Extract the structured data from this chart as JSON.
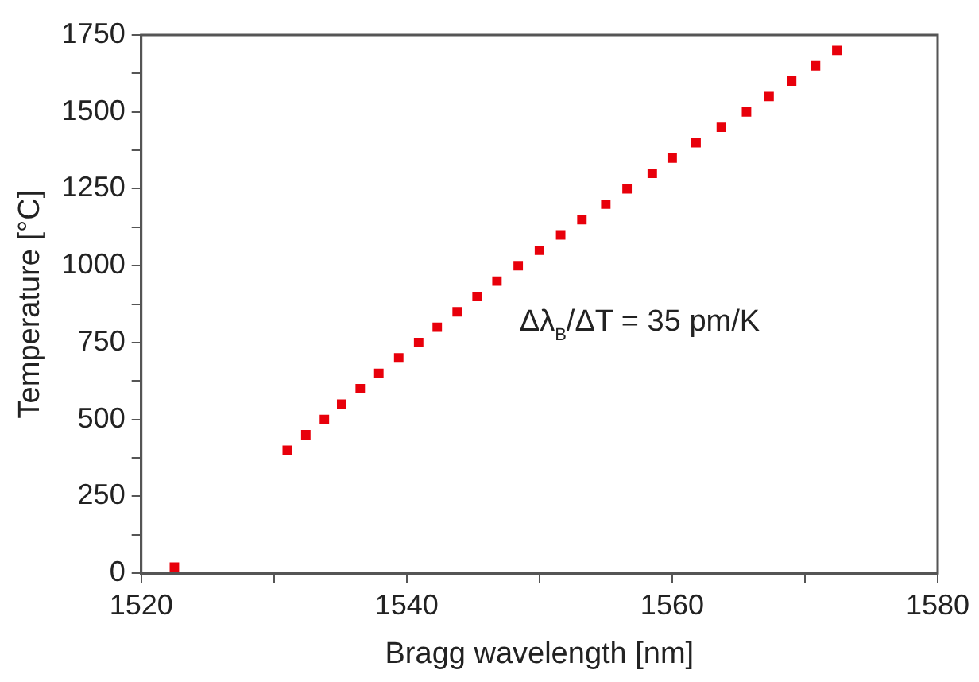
{
  "chart_data": {
    "type": "scatter",
    "xlabel": "Bragg wavelength [nm]",
    "ylabel": "Temperature [°C]",
    "x": [
      1522.5,
      1531.0,
      1532.4,
      1533.8,
      1535.1,
      1536.5,
      1537.9,
      1539.4,
      1540.9,
      1542.3,
      1543.8,
      1545.3,
      1546.8,
      1548.4,
      1550.0,
      1551.6,
      1553.2,
      1555.0,
      1556.6,
      1558.5,
      1560.0,
      1561.8,
      1563.7,
      1565.6,
      1567.3,
      1569.0,
      1570.8,
      1572.4
    ],
    "values": [
      20,
      400,
      450,
      500,
      550,
      600,
      650,
      700,
      750,
      800,
      850,
      900,
      950,
      1000,
      1050,
      1100,
      1150,
      1200,
      1250,
      1300,
      1350,
      1400,
      1450,
      1500,
      1550,
      1600,
      1650,
      1700
    ],
    "color": "#e8000b",
    "marker": "square",
    "grid": false,
    "legend": false,
    "xlim": [
      1520,
      1580
    ],
    "xticks": [
      1520,
      {
        "value": 1530,
        "label": null
      },
      1540,
      {
        "value": 1550,
        "label": null
      },
      1560,
      {
        "value": 1570,
        "label": null
      },
      1580
    ],
    "ylim": [
      0,
      1750
    ],
    "yticks": [
      0,
      {
        "value": 125,
        "label": null
      },
      250,
      {
        "value": 375,
        "label": null
      },
      500,
      {
        "value": 625,
        "label": null
      },
      750,
      {
        "value": 875,
        "label": null
      },
      1000,
      {
        "value": 1125,
        "label": null
      },
      1250,
      {
        "value": 1375,
        "label": null
      },
      1500,
      {
        "value": 1625,
        "label": null
      },
      1750
    ],
    "annotations": [
      "Δλ$_{B}$/ΔT = 35 pm/K"
    ]
  }
}
